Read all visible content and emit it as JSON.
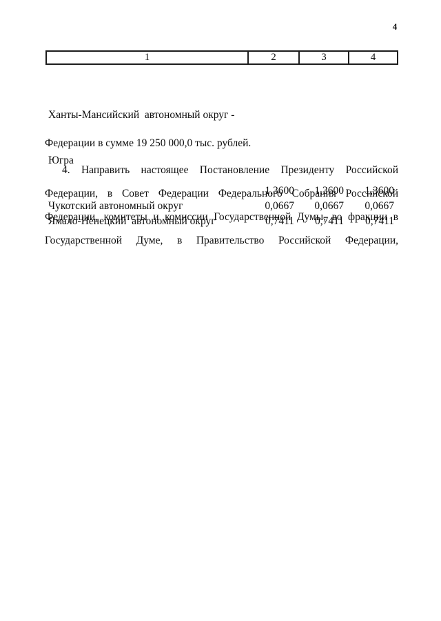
{
  "page": {
    "number": "4"
  },
  "table": {
    "header": [
      "1",
      "2",
      "3",
      "4"
    ],
    "rows": [
      {
        "name_line1": "Ханты-Мансийский  автономный округ -",
        "name_line2": "Югра",
        "values": [
          "1,3600",
          "1,3600",
          "1,3600"
        ]
      },
      {
        "name": "Чукотский автономный округ",
        "values": [
          "0,0667",
          "0,0667",
          "0,0667"
        ]
      },
      {
        "name": "Ямало-Ненецкий  автономный округ",
        "values": [
          "0,7411",
          "0,7411",
          "0,7411"
        ]
      }
    ],
    "note": "Федерации в сумме 19 250 000,0 тыс. рублей."
  },
  "paragraph": {
    "lines": [
      "4. Направить настоящее Постановление Президенту Российской",
      "Федерации, в Совет Федерации Федерального Собрания Российской",
      "Федерации, комитеты и комиссии Государственной Думы, во фракции в",
      "Государственной Думе, в Правительство Российской Федерации,"
    ]
  }
}
